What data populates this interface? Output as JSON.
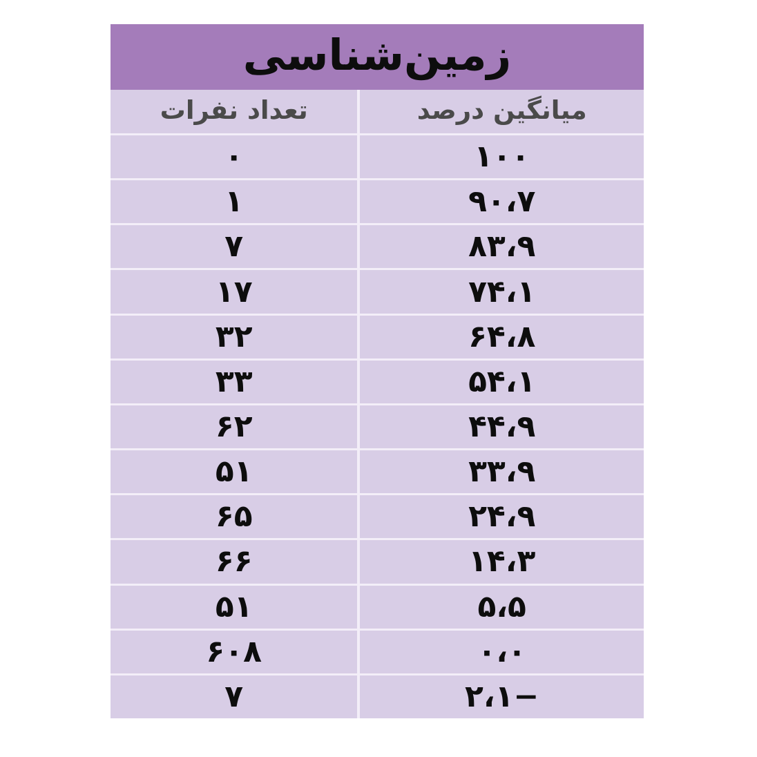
{
  "table": {
    "title": "زمین‌شناسی",
    "header": {
      "percent_label": "میانگین درصد",
      "count_label": "تعداد نفرات"
    },
    "rows": [
      {
        "count": "۰",
        "percent": "۱۰۰"
      },
      {
        "count": "۱",
        "percent": "۹۰،۷"
      },
      {
        "count": "۷",
        "percent": "۸۳،۹"
      },
      {
        "count": "۱۷",
        "percent": "۷۴،۱"
      },
      {
        "count": "۳۲",
        "percent": "۶۴،۸"
      },
      {
        "count": "۳۳",
        "percent": "۵۴،۱"
      },
      {
        "count": "۶۲",
        "percent": "۴۴،۹"
      },
      {
        "count": "۵۱",
        "percent": "۳۳،۹"
      },
      {
        "count": "۶۵",
        "percent": "۲۴،۹"
      },
      {
        "count": "۶۶",
        "percent": "۱۴،۳"
      },
      {
        "count": "۵۱",
        "percent": "۵،۵"
      },
      {
        "count": "۶۰۸",
        "percent": "۰،۰"
      },
      {
        "count": "۷",
        "percent": "۲،۱−"
      }
    ],
    "colors": {
      "header_bg": "#a47cba",
      "row_bg": "#d8cde6",
      "separator": "#f3eef8",
      "title_text": "#0d0d0d",
      "column_label_text": "#4a4a4a",
      "number_text": "#0d0d0d"
    }
  },
  "chart_data": {
    "type": "table",
    "title": "زمین‌شناسی",
    "columns": [
      "میانگین درصد",
      "تعداد نفرات"
    ],
    "series": [
      {
        "name": "میانگین درصد",
        "values": [
          100,
          90.7,
          83.9,
          74.1,
          64.8,
          54.1,
          44.9,
          33.9,
          24.9,
          14.3,
          5.5,
          0.0,
          -2.1
        ]
      },
      {
        "name": "تعداد نفرات",
        "values": [
          0,
          1,
          7,
          17,
          32,
          33,
          62,
          51,
          65,
          66,
          51,
          608,
          7
        ]
      }
    ],
    "layout": {
      "direction": "rtl",
      "header_band_color": "#a47cba",
      "row_color": "#d8cde6"
    }
  }
}
